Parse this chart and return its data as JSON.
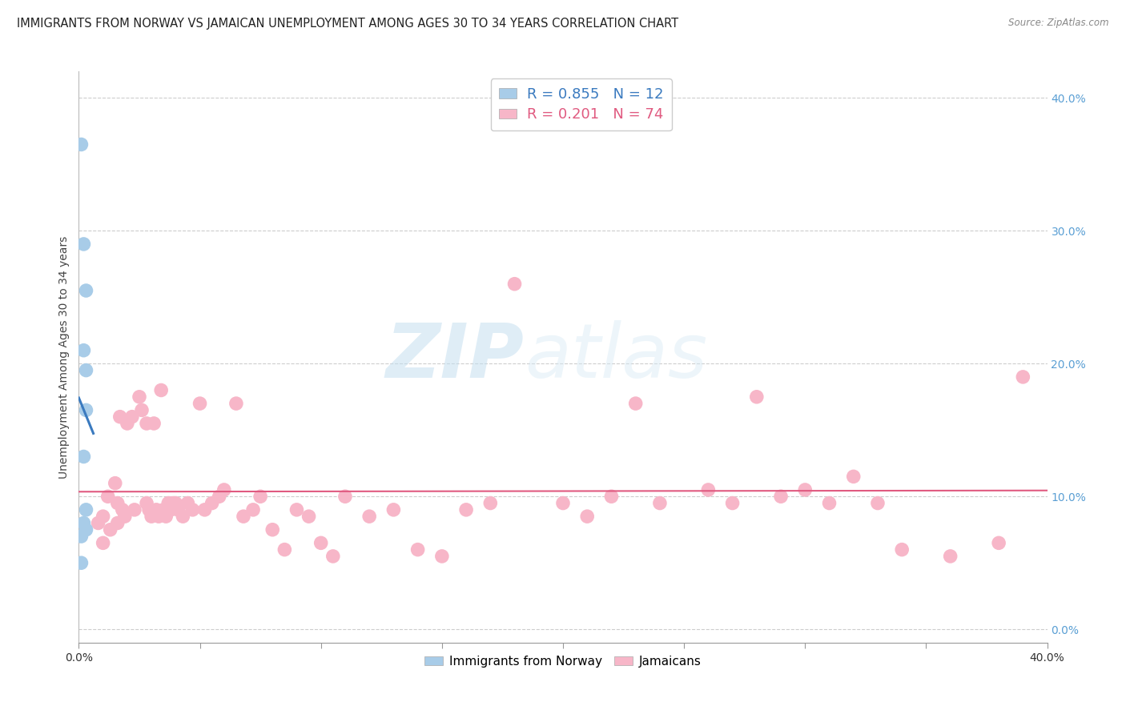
{
  "title": "IMMIGRANTS FROM NORWAY VS JAMAICAN UNEMPLOYMENT AMONG AGES 30 TO 34 YEARS CORRELATION CHART",
  "source": "Source: ZipAtlas.com",
  "ylabel": "Unemployment Among Ages 30 to 34 years",
  "blue_R": 0.855,
  "blue_N": 12,
  "pink_R": 0.201,
  "pink_N": 74,
  "blue_color": "#a8cce8",
  "blue_line_color": "#3a7abf",
  "pink_color": "#f7b6c8",
  "pink_line_color": "#e05a80",
  "legend_label_blue": "Immigrants from Norway",
  "legend_label_pink": "Jamaicans",
  "watermark_zip": "ZIP",
  "watermark_atlas": "atlas",
  "blue_points_x": [
    0.001,
    0.001,
    0.001,
    0.002,
    0.002,
    0.002,
    0.002,
    0.003,
    0.003,
    0.003,
    0.003,
    0.003
  ],
  "blue_points_y": [
    0.365,
    0.07,
    0.05,
    0.29,
    0.21,
    0.13,
    0.08,
    0.255,
    0.195,
    0.165,
    0.09,
    0.075
  ],
  "pink_points_x": [
    0.008,
    0.01,
    0.01,
    0.012,
    0.013,
    0.015,
    0.016,
    0.016,
    0.017,
    0.018,
    0.019,
    0.02,
    0.022,
    0.023,
    0.025,
    0.026,
    0.028,
    0.028,
    0.029,
    0.03,
    0.031,
    0.032,
    0.033,
    0.034,
    0.035,
    0.036,
    0.037,
    0.038,
    0.039,
    0.04,
    0.041,
    0.043,
    0.045,
    0.047,
    0.05,
    0.052,
    0.055,
    0.058,
    0.06,
    0.065,
    0.068,
    0.072,
    0.075,
    0.08,
    0.085,
    0.09,
    0.095,
    0.1,
    0.105,
    0.11,
    0.12,
    0.13,
    0.14,
    0.15,
    0.16,
    0.17,
    0.18,
    0.2,
    0.21,
    0.22,
    0.23,
    0.24,
    0.26,
    0.27,
    0.28,
    0.29,
    0.3,
    0.31,
    0.32,
    0.33,
    0.34,
    0.36,
    0.38,
    0.39
  ],
  "pink_points_y": [
    0.08,
    0.085,
    0.065,
    0.1,
    0.075,
    0.11,
    0.095,
    0.08,
    0.16,
    0.09,
    0.085,
    0.155,
    0.16,
    0.09,
    0.175,
    0.165,
    0.095,
    0.155,
    0.09,
    0.085,
    0.155,
    0.09,
    0.085,
    0.18,
    0.09,
    0.085,
    0.095,
    0.09,
    0.095,
    0.095,
    0.09,
    0.085,
    0.095,
    0.09,
    0.17,
    0.09,
    0.095,
    0.1,
    0.105,
    0.17,
    0.085,
    0.09,
    0.1,
    0.075,
    0.06,
    0.09,
    0.085,
    0.065,
    0.055,
    0.1,
    0.085,
    0.09,
    0.06,
    0.055,
    0.09,
    0.095,
    0.26,
    0.095,
    0.085,
    0.1,
    0.17,
    0.095,
    0.105,
    0.095,
    0.175,
    0.1,
    0.105,
    0.095,
    0.115,
    0.095,
    0.06,
    0.055,
    0.065,
    0.19
  ],
  "xlim": [
    0.0,
    0.4
  ],
  "ylim": [
    -0.01,
    0.42
  ],
  "xticks_minor": [
    0.05,
    0.1,
    0.15,
    0.2,
    0.25,
    0.3,
    0.35
  ],
  "yticks_right": [
    0.0,
    0.1,
    0.2,
    0.3,
    0.4
  ],
  "background_color": "#ffffff",
  "grid_color": "#c8c8c8",
  "title_fontsize": 10.5,
  "axis_label_fontsize": 10,
  "tick_fontsize": 10
}
